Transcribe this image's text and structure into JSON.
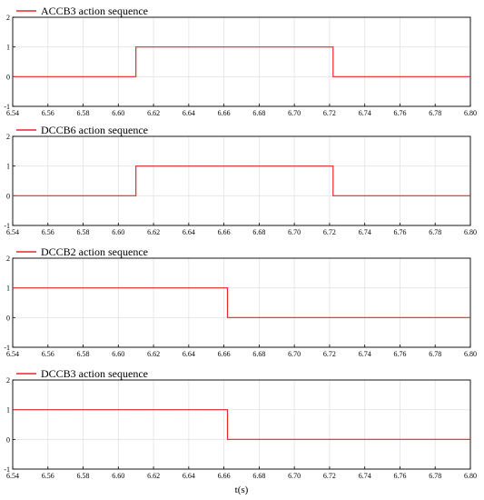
{
  "chart_data": [
    {
      "type": "line",
      "title": "",
      "xlabel": "",
      "ylabel": "",
      "xlim": [
        6.54,
        6.8
      ],
      "ylim": [
        -1,
        2
      ],
      "grid": true,
      "legend_position": "top-left",
      "x_ticks": [
        "6.54",
        "6.56",
        "6.58",
        "6.60",
        "6.62",
        "6.64",
        "6.66",
        "6.68",
        "6.70",
        "6.72",
        "6.74",
        "6.76",
        "6.78",
        "6.80"
      ],
      "y_ticks": [
        "-1",
        "0",
        "1",
        "2"
      ],
      "series": [
        {
          "name": "ACCB3 action sequence",
          "color": "#e8262a",
          "x": [
            6.54,
            6.61,
            6.61,
            6.722,
            6.722,
            6.8
          ],
          "y": [
            0,
            0,
            1,
            1,
            0,
            0
          ]
        }
      ]
    },
    {
      "type": "line",
      "title": "",
      "xlabel": "",
      "ylabel": "",
      "xlim": [
        6.54,
        6.8
      ],
      "ylim": [
        -1,
        2
      ],
      "grid": true,
      "legend_position": "top-left",
      "x_ticks": [
        "6.54",
        "6.56",
        "6.58",
        "6.60",
        "6.62",
        "6.64",
        "6.66",
        "6.68",
        "6.70",
        "6.72",
        "6.74",
        "6.76",
        "6.78",
        "6.80"
      ],
      "y_ticks": [
        "-1",
        "0",
        "1",
        "2"
      ],
      "series": [
        {
          "name": "DCCB6 action sequence",
          "color": "#e8262a",
          "x": [
            6.54,
            6.61,
            6.61,
            6.722,
            6.722,
            6.8
          ],
          "y": [
            0,
            0,
            1,
            1,
            0,
            0
          ]
        }
      ]
    },
    {
      "type": "line",
      "title": "",
      "xlabel": "",
      "ylabel": "",
      "xlim": [
        6.54,
        6.8
      ],
      "ylim": [
        -1,
        2
      ],
      "grid": true,
      "legend_position": "top-left",
      "x_ticks": [
        "6.54",
        "6.56",
        "6.58",
        "6.60",
        "6.62",
        "6.64",
        "6.66",
        "6.68",
        "6.70",
        "6.72",
        "6.74",
        "6.76",
        "6.78",
        "6.80"
      ],
      "y_ticks": [
        "-1",
        "0",
        "1",
        "2"
      ],
      "series": [
        {
          "name": "DCCB2 action sequence",
          "color": "#e8262a",
          "x": [
            6.54,
            6.662,
            6.662,
            6.8
          ],
          "y": [
            1,
            1,
            0,
            0
          ]
        }
      ]
    },
    {
      "type": "line",
      "title": "",
      "xlabel": "t(s)",
      "ylabel": "",
      "xlim": [
        6.54,
        6.8
      ],
      "ylim": [
        -1,
        2
      ],
      "grid": true,
      "legend_position": "top-left",
      "x_ticks": [
        "6.54",
        "6.56",
        "6.58",
        "6.60",
        "6.62",
        "6.64",
        "6.66",
        "6.68",
        "6.70",
        "6.72",
        "6.74",
        "6.76",
        "6.78",
        "6.80"
      ],
      "y_ticks": [
        "-1",
        "0",
        "1",
        "2"
      ],
      "series": [
        {
          "name": "DCCB3 action sequence",
          "color": "#e8262a",
          "x": [
            6.54,
            6.662,
            6.662,
            6.8
          ],
          "y": [
            1,
            1,
            0,
            0
          ]
        }
      ]
    }
  ]
}
